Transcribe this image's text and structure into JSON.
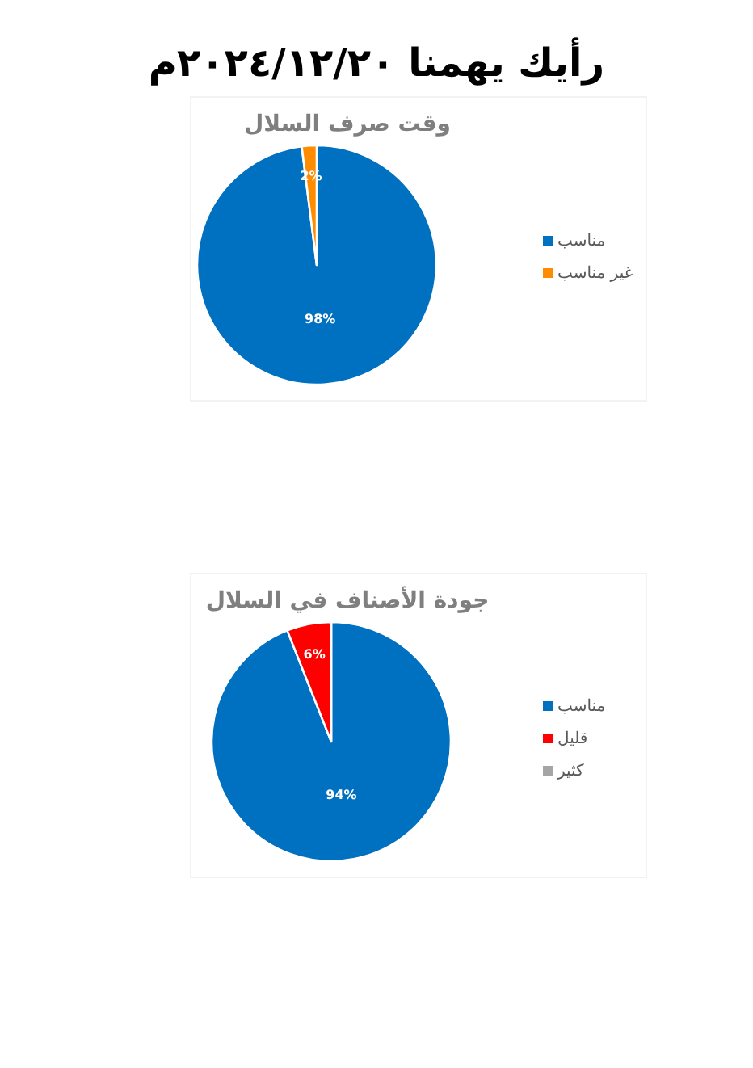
{
  "chart_data": [
    {
      "type": "pie",
      "title": "رأيك يهمنا ٢٠٢٤/١٢/٢٠م",
      "subtitle": "وقت صرف السلال",
      "categories": [
        "مناسب",
        "غير مناسب"
      ],
      "values": [
        98,
        2
      ],
      "value_labels": [
        "98%",
        "2%"
      ],
      "colors": [
        "#0070c0",
        "#ff8c00"
      ],
      "legend": "right"
    },
    {
      "type": "pie",
      "subtitle": "جودة الأصناف في السلال",
      "categories": [
        "مناسب",
        "قليل",
        "كثير"
      ],
      "values": [
        94,
        6,
        0
      ],
      "value_labels": [
        "94%",
        "6%",
        null
      ],
      "colors": [
        "#0070c0",
        "#ff0000",
        "#a5a5a5"
      ],
      "legend": "right"
    }
  ]
}
